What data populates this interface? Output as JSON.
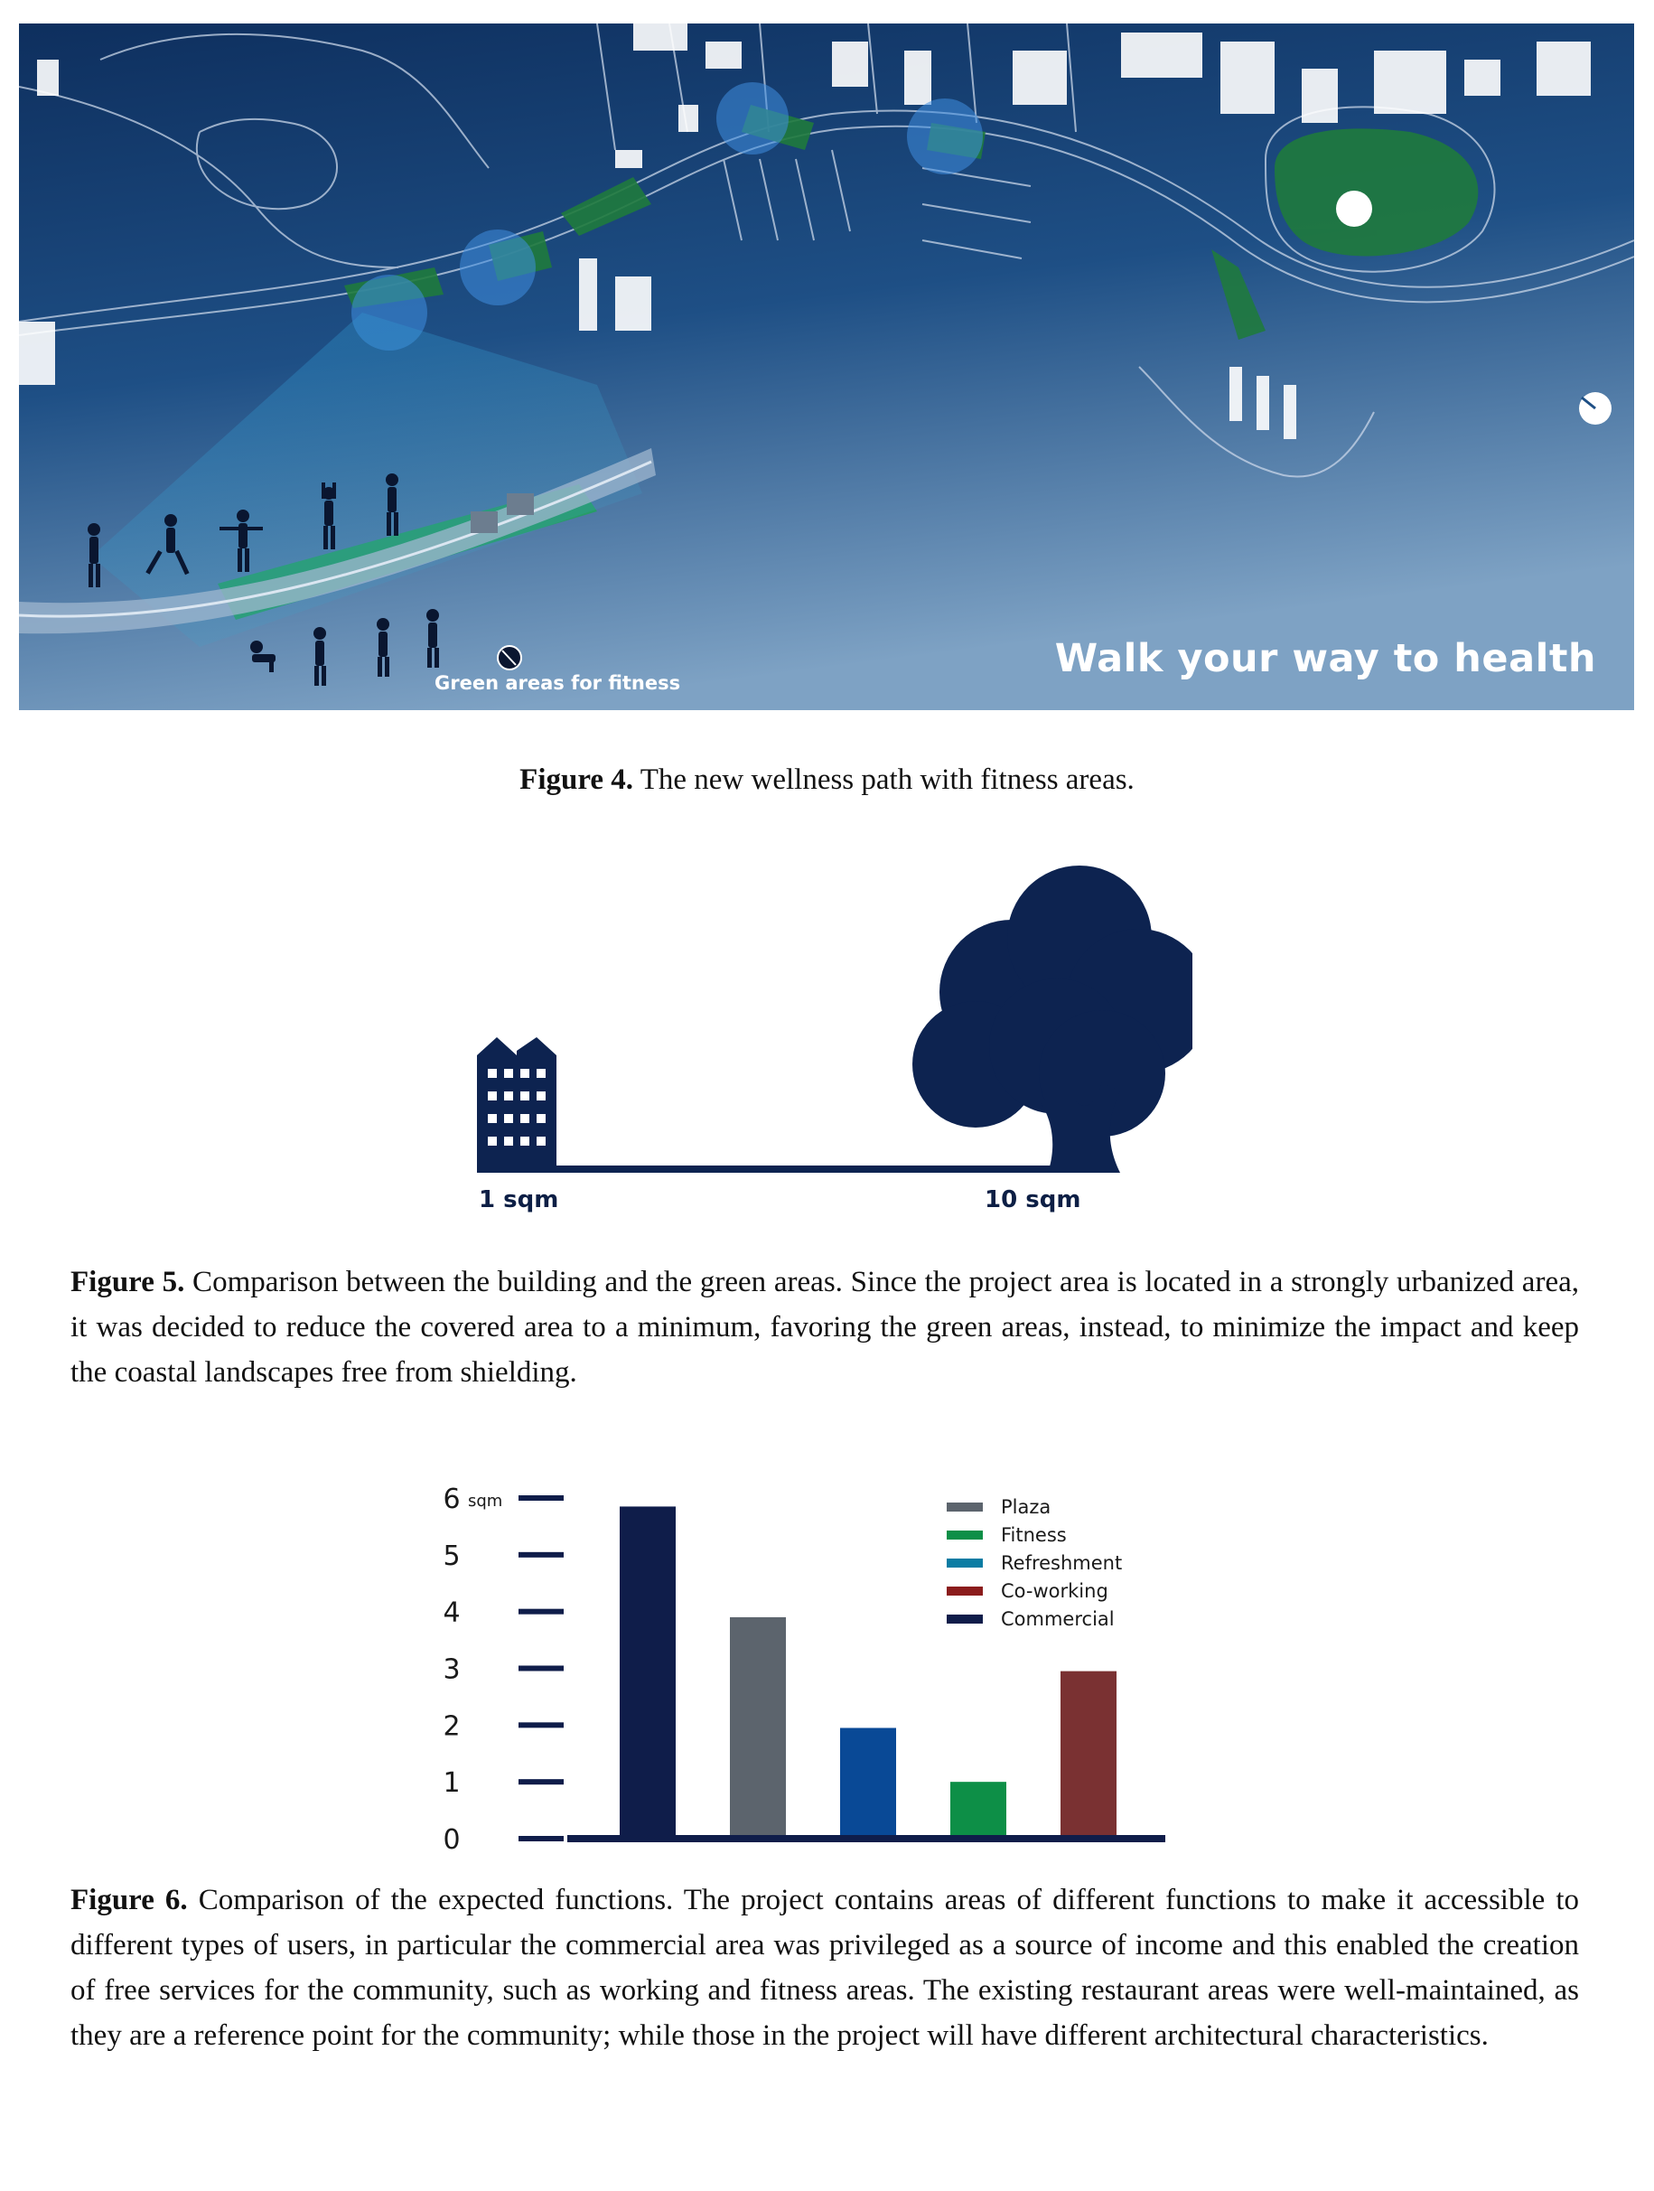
{
  "figure4": {
    "caption_label": "Figure 4.",
    "caption_text": " The new wellness path with fitness areas.",
    "map_label": "Green areas for fitness",
    "map_slogan": "Walk your way to health"
  },
  "figure5": {
    "caption_label": "Figure 5.",
    "caption_text": " Comparison between the building and the green areas. Since the project area is located in a strongly urbanized area, it was decided to reduce the covered area to a minimum, favoring the green areas, instead, to minimize the impact and keep the coastal landscapes free from shielding.",
    "building_label": "1 sqm",
    "tree_label": "10 sqm",
    "color": "#0d2350"
  },
  "figure6": {
    "caption_label": "Figure 6.",
    "caption_text": " Comparison of the expected functions. The project contains areas of different functions to make it accessible to different types of users, in particular the commercial area was privileged as a source of income and this enabled the creation of free services for the community, such as working and fitness areas. The existing restaurant areas were well-maintained, as they are a reference point for the community; while those in the project will have different architectural characteristics."
  },
  "chart_data": {
    "type": "bar",
    "unit": "sqm",
    "ylim": [
      0,
      6
    ],
    "yticks": [
      "0",
      "1",
      "2",
      "3",
      "4",
      "5",
      "6"
    ],
    "grid": false,
    "legend_position": "top-right",
    "bars": [
      {
        "value": 5.85,
        "color": "#0f1d4a"
      },
      {
        "value": 3.9,
        "color": "#5c646d"
      },
      {
        "value": 1.95,
        "color": "#094996"
      },
      {
        "value": 1.0,
        "color": "#0d8f47"
      },
      {
        "value": 2.95,
        "color": "#7a3132"
      }
    ],
    "legend": [
      {
        "name": "Plaza",
        "color": "#5c646d"
      },
      {
        "name": "Fitness",
        "color": "#0d8f47"
      },
      {
        "name": "Refreshment",
        "color": "#0a7ca3"
      },
      {
        "name": "Co-working",
        "color": "#8b1c1c"
      },
      {
        "name": "Commercial",
        "color": "#0f1d4a"
      }
    ]
  }
}
